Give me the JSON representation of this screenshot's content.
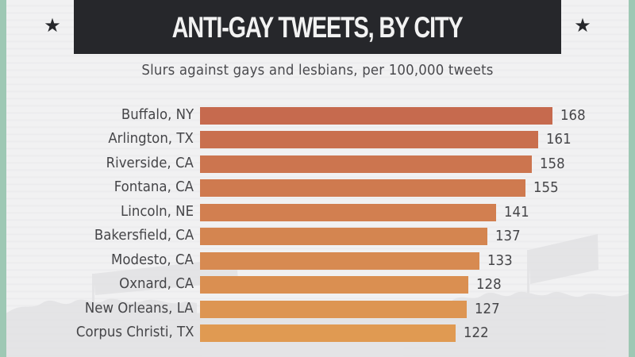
{
  "header": {
    "title": "ANTI-GAY TWEETS, BY CITY",
    "subtitle": "Slurs against gays and lesbians, per 100,000 tweets",
    "left_icon": "star-icon",
    "right_icon": "star-icon",
    "star_glyph": "★"
  },
  "colors": {
    "border": "#9ec8b4",
    "title_bg": "#26272b",
    "bar_top": "#c66a4e",
    "bar_bottom": "#e09a52",
    "text": "#454548"
  },
  "rows": [
    {
      "label": "Buffalo, NY",
      "value": "168"
    },
    {
      "label": "Arlington, TX",
      "value": "161"
    },
    {
      "label": "Riverside, CA",
      "value": "158"
    },
    {
      "label": "Fontana, CA",
      "value": "155"
    },
    {
      "label": "Lincoln, NE",
      "value": "141"
    },
    {
      "label": "Bakersfield, CA",
      "value": "137"
    },
    {
      "label": "Modesto, CA",
      "value": "133"
    },
    {
      "label": "Oxnard, CA",
      "value": "128"
    },
    {
      "label": "New Orleans, LA",
      "value": "127"
    },
    {
      "label": "Corpus Christi, TX",
      "value": "122"
    }
  ],
  "chart_data": {
    "type": "bar",
    "orientation": "horizontal",
    "title": "ANTI-GAY TWEETS, BY CITY",
    "subtitle": "Slurs against gays and lesbians, per 100,000 tweets",
    "categories": [
      "Buffalo, NY",
      "Arlington, TX",
      "Riverside, CA",
      "Fontana, CA",
      "Lincoln, NE",
      "Bakersfield, CA",
      "Modesto, CA",
      "Oxnard, CA",
      "New Orleans, LA",
      "Corpus Christi, TX"
    ],
    "values": [
      168,
      161,
      158,
      155,
      141,
      137,
      133,
      128,
      127,
      122
    ],
    "xlabel": "",
    "ylabel": "",
    "xlim": [
      0,
      168
    ],
    "grid": false,
    "legend": "none",
    "data_labels": true
  }
}
